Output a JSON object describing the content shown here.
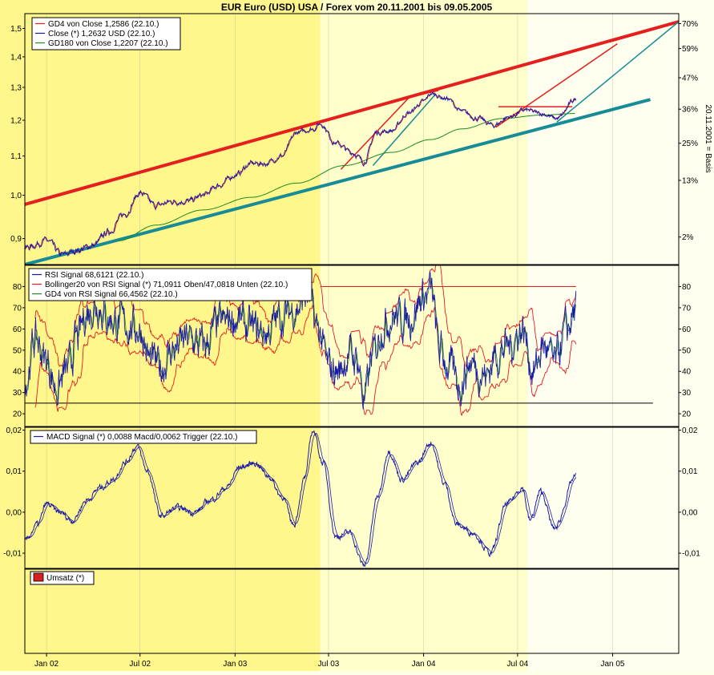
{
  "title": "EUR Euro (USD) USA / Forex vom 20.11.2001 bis 09.05.2005",
  "right_axis_label": "20.11.2001 = Basis",
  "colors": {
    "bg_band_dark": "#fff68c",
    "bg_band_light": "#ffffcc",
    "bg_band_pale": "#fffff0",
    "red": "#e51e1e",
    "blue": "#1a1aa8",
    "green": "#1e8a1e",
    "teal": "#178c96",
    "black": "#000000",
    "umsatz": "#d62020"
  },
  "x_tick_labels": [
    "Jan 02",
    "Jul 02",
    "Jan 03",
    "Jul 03",
    "Jan 04",
    "Jul 04",
    "Jan 05"
  ],
  "chart_data": [
    {
      "type": "line",
      "panel": "price",
      "y_ticks": [
        "1,5",
        "1,4",
        "1,3",
        "1,2",
        "1,1",
        "1,0",
        "0,9"
      ],
      "y_tick_values": [
        1.5,
        1.4,
        1.3,
        1.2,
        1.1,
        1.0,
        0.9
      ],
      "right_ticks": [
        "70%",
        "59%",
        "47%",
        "36%",
        "25%",
        "13%",
        "2%"
      ],
      "right_tick_values": [
        1.5177,
        1.4285,
        1.3306,
        1.2327,
        1.1347,
        1.0368,
        0.9034
      ],
      "ylim": [
        0.845,
        1.555
      ],
      "legend": [
        {
          "text": "GD4 von Close 1,2586 (22.10.)",
          "color": "#e51e1e"
        },
        {
          "text": "Close (*) 1,2632 USD (22.10.)",
          "color": "#1a1aa8"
        },
        {
          "text": "GD180 von Close 1,2207 (22.10.)",
          "color": "#1e8a1e"
        }
      ],
      "close_keypoints": [
        [
          "2001-11-20",
          0.88
        ],
        [
          "2002-01-01",
          0.895
        ],
        [
          "2002-02-01",
          0.865
        ],
        [
          "2002-03-01",
          0.875
        ],
        [
          "2002-04-01",
          0.885
        ],
        [
          "2002-05-01",
          0.915
        ],
        [
          "2002-06-01",
          0.955
        ],
        [
          "2002-07-01",
          1.005
        ],
        [
          "2002-08-01",
          0.975
        ],
        [
          "2002-09-01",
          0.985
        ],
        [
          "2002-10-01",
          0.985
        ],
        [
          "2002-11-01",
          1.0
        ],
        [
          "2002-12-01",
          1.025
        ],
        [
          "2003-01-01",
          1.05
        ],
        [
          "2003-02-01",
          1.08
        ],
        [
          "2003-03-01",
          1.08
        ],
        [
          "2003-04-01",
          1.1
        ],
        [
          "2003-05-01",
          1.165
        ],
        [
          "2003-06-01",
          1.175
        ],
        [
          "2003-06-15",
          1.19
        ],
        [
          "2003-07-15",
          1.135
        ],
        [
          "2003-08-15",
          1.11
        ],
        [
          "2003-09-08",
          1.085
        ],
        [
          "2003-10-01",
          1.165
        ],
        [
          "2003-11-01",
          1.17
        ],
        [
          "2003-12-01",
          1.22
        ],
        [
          "2004-01-01",
          1.255
        ],
        [
          "2004-01-15",
          1.28
        ],
        [
          "2004-02-15",
          1.265
        ],
        [
          "2004-03-15",
          1.225
        ],
        [
          "2004-04-15",
          1.205
        ],
        [
          "2004-05-15",
          1.185
        ],
        [
          "2004-06-15",
          1.21
        ],
        [
          "2004-07-15",
          1.23
        ],
        [
          "2004-08-15",
          1.22
        ],
        [
          "2004-09-15",
          1.205
        ],
        [
          "2004-10-22",
          1.263
        ]
      ],
      "gd180_keypoints": [
        [
          "2002-05-20",
          0.895
        ],
        [
          "2002-08-01",
          0.93
        ],
        [
          "2002-11-01",
          0.965
        ],
        [
          "2003-02-01",
          0.995
        ],
        [
          "2003-05-01",
          1.03
        ],
        [
          "2003-08-01",
          1.075
        ],
        [
          "2003-11-01",
          1.11
        ],
        [
          "2004-01-15",
          1.145
        ],
        [
          "2004-03-15",
          1.175
        ],
        [
          "2004-06-01",
          1.205
        ],
        [
          "2004-08-15",
          1.215
        ],
        [
          "2004-10-22",
          1.22
        ]
      ]
    },
    {
      "type": "line",
      "panel": "rsi",
      "y_ticks": [
        "80",
        "70",
        "60",
        "50",
        "40",
        "30",
        "20"
      ],
      "y_tick_values": [
        80,
        70,
        60,
        50,
        40,
        30,
        20
      ],
      "ylim": [
        14,
        90
      ],
      "legend": [
        {
          "text": "RSI Signal 68,6121 (22.10.)",
          "color": "#1a1aa8"
        },
        {
          "text": "Bollinger20 von RSI Signal (*) 71,0911 Oben/47,0818 Unten (22.10.)",
          "color": "#e51e1e"
        },
        {
          "text": "GD4 von RSI Signal 66,4562 (22.10.)",
          "color": "#1e8a1e"
        }
      ],
      "rsi_keypoints": [
        [
          "2001-11-20",
          35
        ],
        [
          "2001-12-10",
          55
        ],
        [
          "2002-01-01",
          45
        ],
        [
          "2002-01-20",
          32
        ],
        [
          "2002-02-10",
          40
        ],
        [
          "2002-03-01",
          55
        ],
        [
          "2002-03-20",
          68
        ],
        [
          "2002-04-10",
          72
        ],
        [
          "2002-05-01",
          65
        ],
        [
          "2002-06-01",
          62
        ],
        [
          "2002-07-01",
          60
        ],
        [
          "2002-07-20",
          45
        ],
        [
          "2002-08-10",
          42
        ],
        [
          "2002-09-01",
          50
        ],
        [
          "2002-10-01",
          55
        ],
        [
          "2002-11-01",
          52
        ],
        [
          "2002-12-01",
          62
        ],
        [
          "2003-01-01",
          65
        ],
        [
          "2003-02-01",
          60
        ],
        [
          "2003-03-01",
          58
        ],
        [
          "2003-04-01",
          66
        ],
        [
          "2003-05-01",
          70
        ],
        [
          "2003-05-20",
          76
        ],
        [
          "2003-06-10",
          60
        ],
        [
          "2003-07-01",
          42
        ],
        [
          "2003-07-20",
          40
        ],
        [
          "2003-08-10",
          48
        ],
        [
          "2003-08-25",
          46
        ],
        [
          "2003-09-08",
          27
        ],
        [
          "2003-09-25",
          48
        ],
        [
          "2003-10-15",
          62
        ],
        [
          "2003-11-01",
          66
        ],
        [
          "2003-12-01",
          65
        ],
        [
          "2004-01-05",
          76
        ],
        [
          "2004-01-15",
          78
        ],
        [
          "2004-02-01",
          50
        ],
        [
          "2004-02-20",
          42
        ],
        [
          "2004-03-10",
          34
        ],
        [
          "2004-04-01",
          44
        ],
        [
          "2004-05-01",
          38
        ],
        [
          "2004-05-20",
          48
        ],
        [
          "2004-06-15",
          52
        ],
        [
          "2004-07-10",
          60
        ],
        [
          "2004-08-01",
          40
        ],
        [
          "2004-08-20",
          52
        ],
        [
          "2004-09-10",
          44
        ],
        [
          "2004-10-01",
          58
        ],
        [
          "2004-10-22",
          68.6
        ]
      ],
      "upper_band_value": 80,
      "lower_band_value": 25
    },
    {
      "type": "line",
      "panel": "macd",
      "y_ticks": [
        "0,02",
        "0,01",
        "0,00",
        "-0,01"
      ],
      "y_tick_values": [
        0.02,
        0.01,
        0.0,
        -0.01
      ],
      "ylim": [
        -0.0137,
        0.0207
      ],
      "legend": [
        {
          "text": "MACD Signal (*) 0,0088 Macd/0,0062 Trigger (22.10.)",
          "color": "#1a1aa8"
        }
      ],
      "macd_keypoints": [
        [
          "2001-11-20",
          -0.007
        ],
        [
          "2001-12-15",
          -0.003
        ],
        [
          "2002-01-01",
          0.002
        ],
        [
          "2002-01-25",
          0.0
        ],
        [
          "2002-02-20",
          -0.002
        ],
        [
          "2002-03-20",
          0.003
        ],
        [
          "2002-04-15",
          0.006
        ],
        [
          "2002-05-10",
          0.008
        ],
        [
          "2002-06-01",
          0.012
        ],
        [
          "2002-06-25",
          0.016
        ],
        [
          "2002-07-15",
          0.01
        ],
        [
          "2002-08-10",
          -0.001
        ],
        [
          "2002-09-10",
          0.001
        ],
        [
          "2002-10-15",
          0.0
        ],
        [
          "2002-11-15",
          0.003
        ],
        [
          "2002-12-15",
          0.006
        ],
        [
          "2003-01-10",
          0.011
        ],
        [
          "2003-02-10",
          0.012
        ],
        [
          "2003-03-05",
          0.009
        ],
        [
          "2003-04-01",
          0.004
        ],
        [
          "2003-04-25",
          -0.003
        ],
        [
          "2003-05-15",
          0.008
        ],
        [
          "2003-06-01",
          0.02
        ],
        [
          "2003-06-20",
          0.012
        ],
        [
          "2003-07-15",
          -0.006
        ],
        [
          "2003-08-10",
          -0.005
        ],
        [
          "2003-09-08",
          -0.013
        ],
        [
          "2003-10-05",
          0.004
        ],
        [
          "2003-10-25",
          0.015
        ],
        [
          "2003-11-20",
          0.008
        ],
        [
          "2003-12-20",
          0.012
        ],
        [
          "2004-01-15",
          0.017
        ],
        [
          "2004-02-10",
          0.007
        ],
        [
          "2004-03-05",
          -0.003
        ],
        [
          "2004-04-05",
          -0.005
        ],
        [
          "2004-05-10",
          -0.01
        ],
        [
          "2004-06-10",
          0.002
        ],
        [
          "2004-07-10",
          0.006
        ],
        [
          "2004-07-25",
          -0.002
        ],
        [
          "2004-08-15",
          0.005
        ],
        [
          "2004-09-10",
          -0.004
        ],
        [
          "2004-10-22",
          0.0088
        ]
      ]
    },
    {
      "type": "bar",
      "panel": "volume",
      "legend": [
        {
          "text": "Umsatz (*)",
          "color": "#d62020"
        }
      ],
      "values": []
    }
  ],
  "trendlines": [
    {
      "color": "#e51e1e",
      "from": [
        "2001-11-20",
        0.978
      ],
      "to": [
        "2005-05-09",
        1.525
      ]
    },
    {
      "color": "#178c96",
      "from": [
        "2001-11-20",
        0.845
      ],
      "to": [
        "2005-03-15",
        1.262
      ]
    },
    {
      "color": "#e51e1e",
      "from": [
        "2003-07-25",
        1.065
      ],
      "to": [
        "2003-12-05",
        1.27
      ]
    },
    {
      "color": "#178c96",
      "from": [
        "2003-09-25",
        1.075
      ],
      "to": [
        "2004-01-25",
        1.28
      ]
    },
    {
      "color": "#e51e1e",
      "from": [
        "2003-12-05",
        1.27
      ],
      "to": [
        "2004-01-30",
        1.29
      ]
    },
    {
      "color": "#e51e1e",
      "from": [
        "2004-05-20",
        1.18
      ],
      "to": [
        "2005-01-10",
        1.445
      ]
    },
    {
      "color": "#178c96",
      "from": [
        "2004-09-15",
        1.195
      ],
      "to": [
        "2005-05-09",
        1.525
      ]
    },
    {
      "color": "#e51e1e",
      "from": [
        "2004-05-25",
        1.24
      ],
      "to": [
        "2004-10-15",
        1.24
      ]
    }
  ]
}
